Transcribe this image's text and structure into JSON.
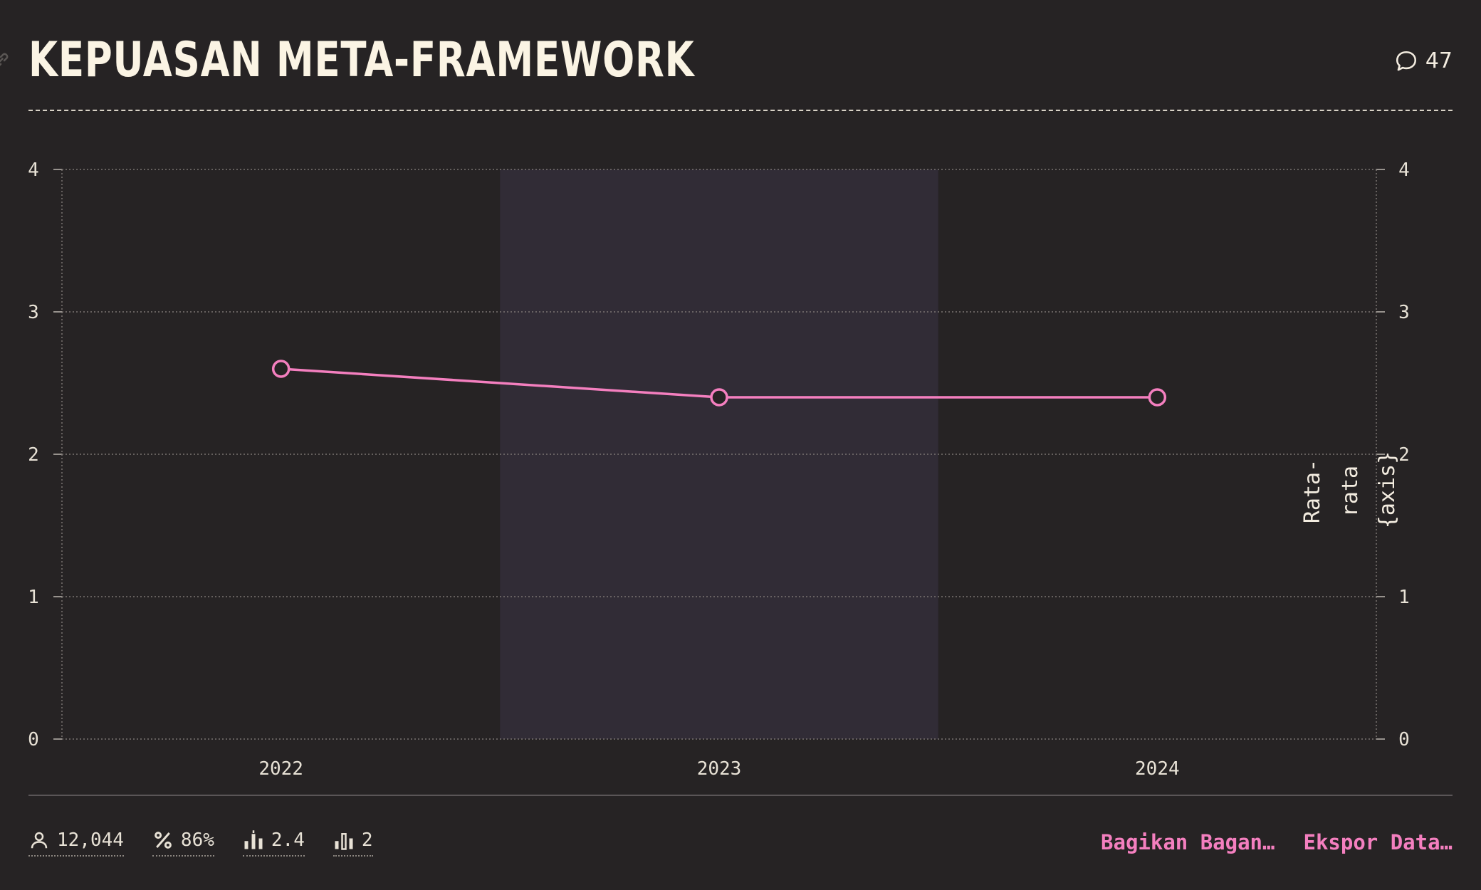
{
  "header": {
    "title": "KEPUASAN META-FRAMEWORK",
    "comment_count": "47"
  },
  "chart_data": {
    "type": "line",
    "x": [
      "2022",
      "2023",
      "2024"
    ],
    "series": [
      {
        "values": [
          2.6,
          2.4,
          2.4
        ],
        "color": "#f47fbf"
      }
    ],
    "ylim": [
      0,
      4
    ],
    "yticks": [
      "0",
      "1",
      "2",
      "3",
      "4"
    ],
    "right_axis_label": [
      "Rata-",
      "rata",
      "{axis}"
    ],
    "highlight_category": "2023",
    "grid": true
  },
  "footer": {
    "stats": [
      {
        "icon": "user-icon",
        "value": "12,044"
      },
      {
        "icon": "percent-icon",
        "value": "86%"
      },
      {
        "icon": "average-bars-icon",
        "value": "2.4"
      },
      {
        "icon": "median-bars-icon",
        "value": "2"
      }
    ],
    "actions": {
      "share": "Bagikan Bagan…",
      "export": "Ekspor Data…"
    }
  },
  "colors": {
    "background": "#262324",
    "accent": "#f47fbf",
    "highlight_band": "#312c36",
    "text": "#f3ece0"
  }
}
